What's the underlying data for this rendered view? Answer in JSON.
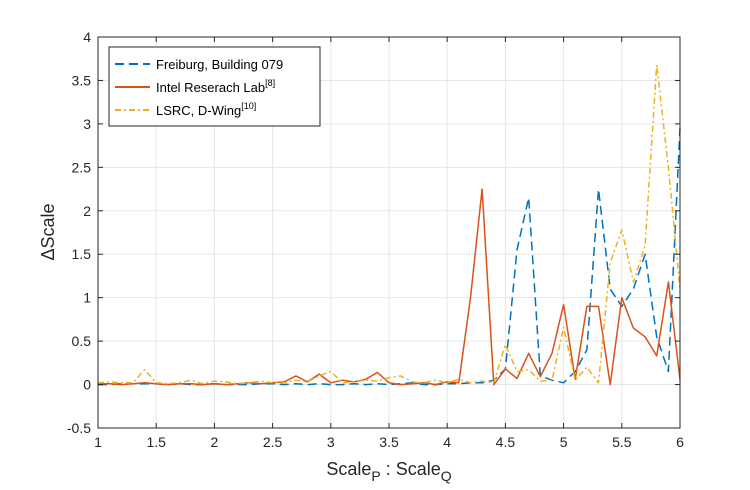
{
  "chart_data": {
    "type": "line",
    "xlabel": {
      "main": "Scale",
      "sub1": "P",
      "sep": " : Scale",
      "sub2": "Q"
    },
    "ylabel": {
      "prefix": "Δ",
      "main": "Scale"
    },
    "xlim": [
      1,
      6
    ],
    "ylim": [
      -0.5,
      4
    ],
    "xticks": [
      "1",
      "1.5",
      "2",
      "2.5",
      "3",
      "3.5",
      "4",
      "4.5",
      "5",
      "5.5",
      "6"
    ],
    "yticks": [
      "-0.5",
      "0",
      "0.5",
      "1",
      "1.5",
      "2",
      "2.5",
      "3",
      "3.5",
      "4"
    ],
    "grid": true,
    "legend_position": "top-left",
    "x": [
      1.0,
      1.1,
      1.2,
      1.3,
      1.4,
      1.5,
      1.6,
      1.7,
      1.8,
      1.9,
      2.0,
      2.1,
      2.2,
      2.3,
      2.4,
      2.5,
      2.6,
      2.7,
      2.8,
      2.9,
      3.0,
      3.1,
      3.2,
      3.3,
      3.4,
      3.5,
      3.6,
      3.7,
      3.8,
      3.9,
      4.0,
      4.1,
      4.2,
      4.3,
      4.4,
      4.5,
      4.6,
      4.7,
      4.8,
      4.9,
      5.0,
      5.1,
      5.2,
      5.3,
      5.4,
      5.5,
      5.6,
      5.7,
      5.8,
      5.9,
      6.0
    ],
    "series": [
      {
        "name": "Freiburg, Building 079",
        "sup": "",
        "color": "#0072BD",
        "dash": "9,5",
        "values": [
          0.0,
          0.0,
          0.01,
          0.01,
          0.01,
          0.01,
          0.0,
          0.01,
          0.0,
          0.0,
          0.01,
          0.0,
          0.0,
          0.0,
          0.01,
          0.01,
          0.0,
          0.01,
          0.0,
          0.01,
          0.0,
          0.0,
          0.01,
          0.0,
          0.01,
          0.0,
          0.01,
          0.02,
          0.0,
          0.0,
          0.01,
          0.01,
          0.02,
          0.02,
          0.05,
          0.18,
          1.55,
          2.15,
          0.1,
          0.05,
          0.02,
          0.15,
          0.4,
          2.25,
          1.1,
          0.9,
          1.1,
          1.5,
          0.55,
          0.15,
          2.95
        ]
      },
      {
        "name": "Intel Reserach Lab",
        "sup": "[8]",
        "color": "#D95319",
        "dash": "",
        "values": [
          0.01,
          0.01,
          0.0,
          0.01,
          0.02,
          0.01,
          0.0,
          0.01,
          0.01,
          0.0,
          0.01,
          0.0,
          0.01,
          0.02,
          0.01,
          0.02,
          0.03,
          0.1,
          0.03,
          0.12,
          0.02,
          0.05,
          0.03,
          0.06,
          0.14,
          0.02,
          0.0,
          0.01,
          0.02,
          0.0,
          0.03,
          0.02,
          1.0,
          2.25,
          0.0,
          0.18,
          0.07,
          0.36,
          0.09,
          0.36,
          0.92,
          0.06,
          0.9,
          0.9,
          0.0,
          1.0,
          0.65,
          0.55,
          0.33,
          1.18,
          0.06
        ]
      },
      {
        "name": "LSRC, D-Wing",
        "sup": "[10]",
        "color": "#EDB120",
        "dash": "6,3,2,3",
        "values": [
          0.02,
          0.03,
          0.02,
          0.02,
          0.17,
          0.02,
          0.01,
          0.02,
          0.05,
          0.01,
          0.04,
          0.03,
          0.01,
          0.02,
          0.04,
          0.02,
          0.02,
          0.05,
          0.03,
          0.1,
          0.15,
          0.02,
          0.03,
          0.05,
          0.04,
          0.08,
          0.1,
          0.03,
          0.02,
          0.05,
          0.02,
          0.06,
          0.02,
          0.04,
          0.02,
          0.46,
          0.15,
          0.17,
          0.04,
          0.05,
          0.66,
          0.05,
          0.2,
          0.02,
          1.4,
          1.78,
          1.18,
          1.6,
          3.68,
          2.5,
          1.1
        ]
      }
    ]
  }
}
